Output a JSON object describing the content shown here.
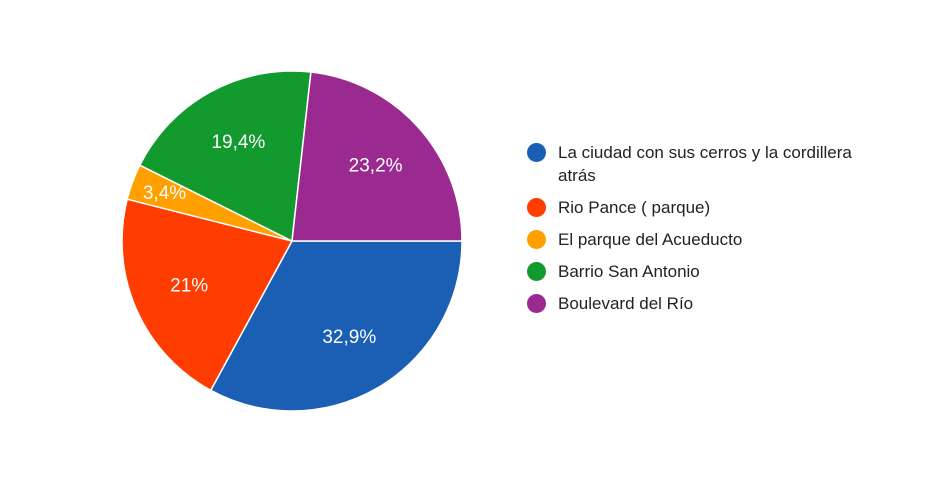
{
  "chart_data": {
    "type": "pie",
    "title": "",
    "legend_position": "right",
    "slices": [
      {
        "label": "La ciudad con sus cerros y la cordillera atrás",
        "value": 32.9,
        "display": "32,9%",
        "color": "#1a5fb4"
      },
      {
        "label": "Rio Pance ( parque)",
        "value": 21,
        "display": "21%",
        "color": "#ff3d00"
      },
      {
        "label": "El parque del Acueducto",
        "value": 3.4,
        "display": "3,4%",
        "color": "#ff9f00"
      },
      {
        "label": "Barrio San Antonio",
        "value": 19.4,
        "display": "19,4%",
        "color": "#139a2e"
      },
      {
        "label": "Boulevard del Río",
        "value": 23.2,
        "display": "23,2%",
        "color": "#9b2a90"
      }
    ]
  }
}
